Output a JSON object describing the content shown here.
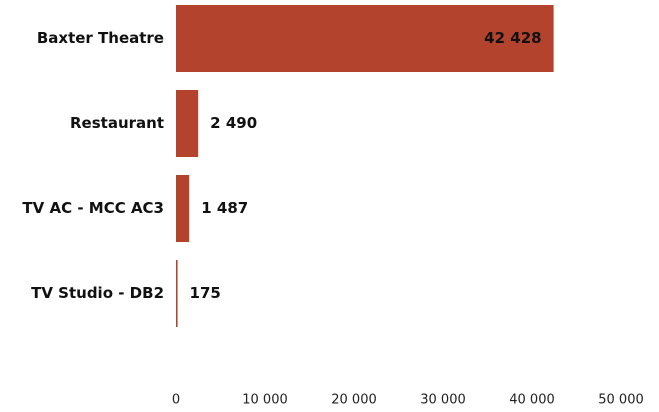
{
  "chart_data": {
    "type": "barh",
    "categories": [
      "Baxter Theatre",
      "Restaurant",
      "TV AC - MCC AC3",
      "TV Studio - DB2"
    ],
    "values": [
      42428,
      2490,
      1487,
      175
    ],
    "value_labels": [
      "42 428",
      "2 490",
      "1 487",
      "175"
    ],
    "color": "#b3432d",
    "xlim": [
      0,
      50000
    ],
    "xticks": [
      0,
      {
        "value": 10000,
        "label": "10 000"
      },
      {
        "value": 20000,
        "label": "20 000"
      },
      {
        "value": 30000,
        "label": "30 000"
      },
      {
        "value": 40000,
        "label": "40 000"
      },
      {
        "value": 50000,
        "label": "50 000"
      }
    ],
    "grid": false
  }
}
